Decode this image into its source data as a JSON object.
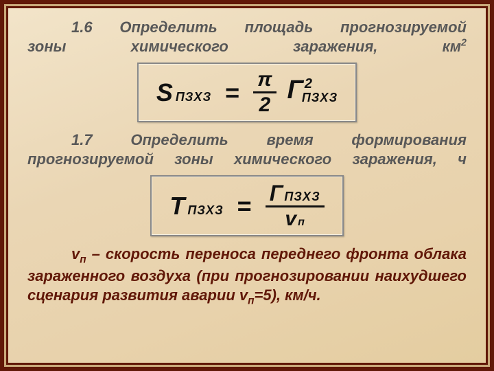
{
  "task1": {
    "number": "1.6",
    "text_line1": "Определить площадь прогнозируемой",
    "text_line2": "зоны химического заражения, км",
    "unit_super": "2"
  },
  "formula1": {
    "lhs_symbol": "S",
    "lhs_subscript": "ПЗХЗ",
    "equals": "=",
    "fraction_num": "π",
    "fraction_den": "2",
    "rhs_symbol": "Г",
    "rhs_superscript": "2",
    "rhs_subscript": "ПЗХЗ"
  },
  "task2": {
    "number": "1.7",
    "text_line1": "Определить время формирования",
    "text_line2": "прогнозируемой зоны химического заражения, ч"
  },
  "formula2": {
    "lhs_symbol": "Т",
    "lhs_subscript": "ПЗХЗ",
    "equals": "=",
    "num_symbol": "Г",
    "num_subscript": "ПЗХЗ",
    "den_symbol": "v",
    "den_subscript": "п"
  },
  "legend": {
    "var": "v",
    "var_sub": "п",
    "text": " – скорость переноса переднего фронта облака зараженного воздуха (при прогнозировании наихудшего сценария развития аварии v",
    "trail_sub": "п",
    "trail": "=5), км/ч."
  },
  "colors": {
    "frame_dark": "#611808",
    "frame_light": "#c9a97a",
    "heading_gray": "#585858",
    "legend_brown": "#611808",
    "formula_black": "#111111"
  }
}
